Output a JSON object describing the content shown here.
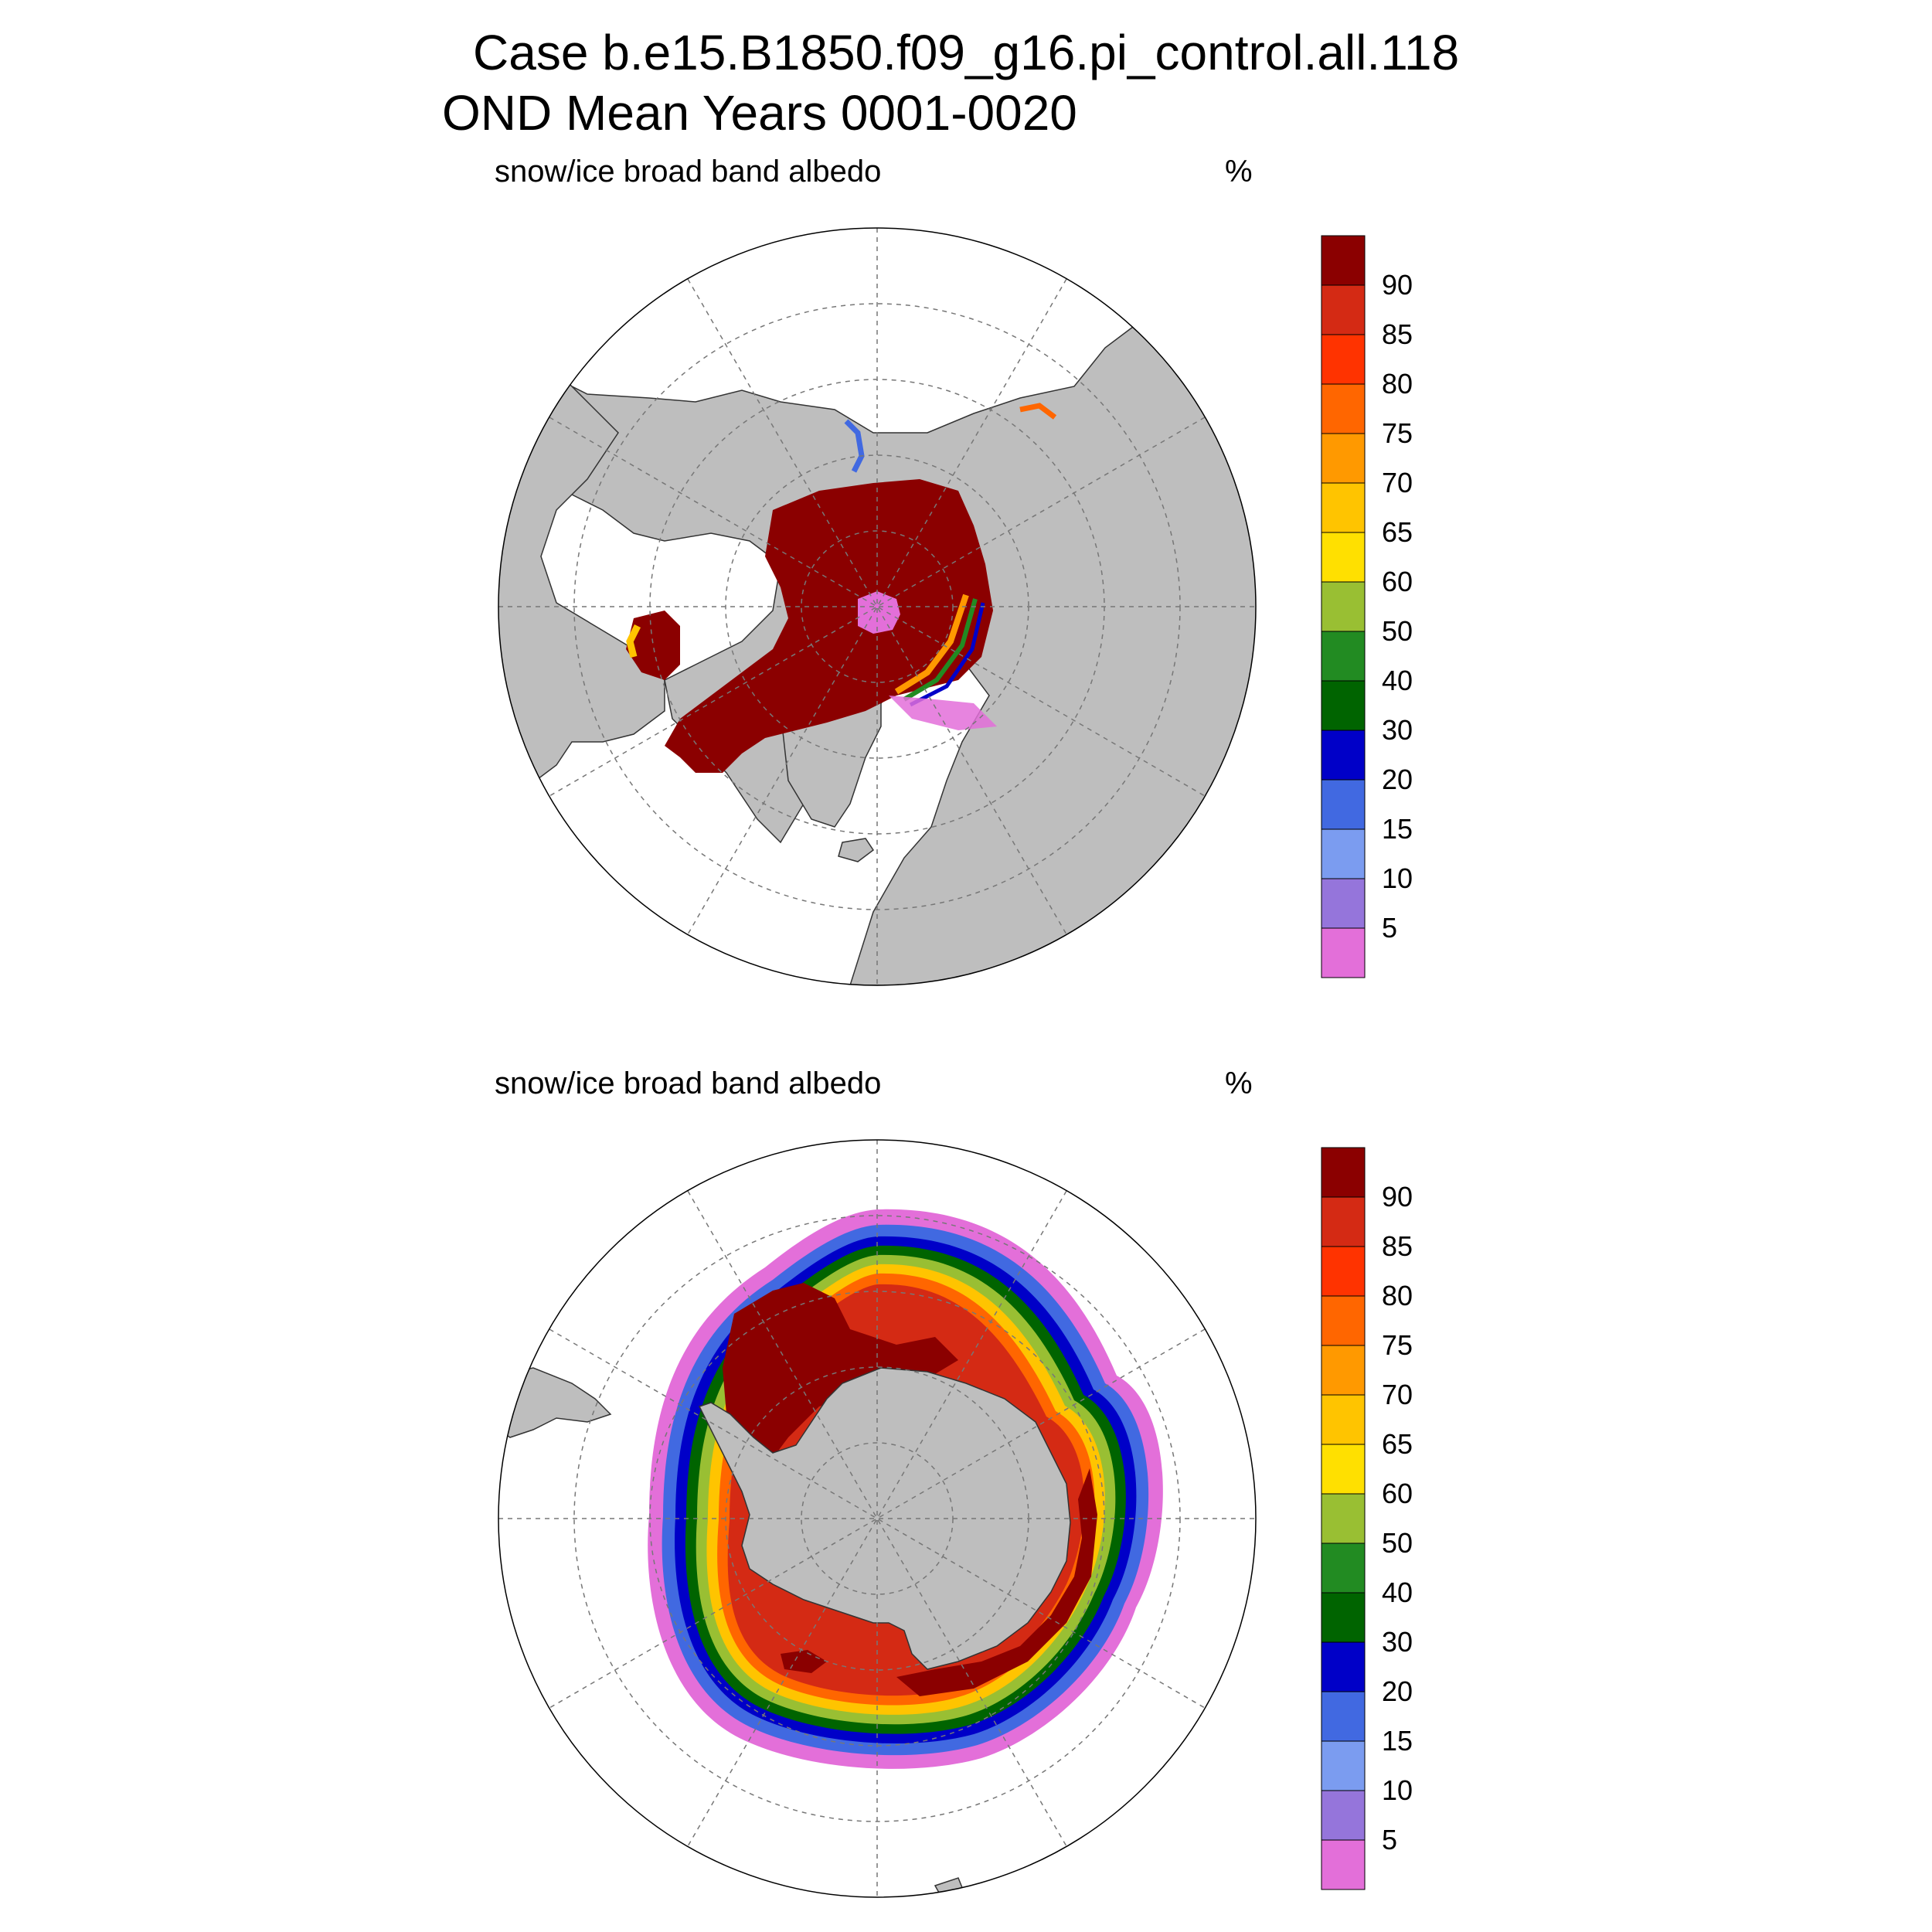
{
  "title": {
    "line1": "Case b.e15.B1850.f09_g16.pi_control.all.118",
    "line2": "OND Mean   Years 0001-0020"
  },
  "panels": [
    {
      "id": "north",
      "variable": "snow/ice broad band albedo",
      "units": "%"
    },
    {
      "id": "south",
      "variable": "snow/ice broad band albedo",
      "units": "%"
    }
  ],
  "colorbar": {
    "levels": [
      "5",
      "10",
      "15",
      "20",
      "30",
      "40",
      "50",
      "60",
      "65",
      "70",
      "75",
      "80",
      "85",
      "90"
    ],
    "colors": [
      "#e36fd9",
      "#9575db",
      "#7b9cf0",
      "#4169e1",
      "#0000c8",
      "#006400",
      "#228b22",
      "#99bf33",
      "#ffe000",
      "#ffc400",
      "#ff9900",
      "#ff6600",
      "#ff3300",
      "#d42a14",
      "#8b0000"
    ]
  },
  "map_colors": {
    "land": "#bebebe",
    "ocean": "#ffffff",
    "grid": "#777777"
  }
}
